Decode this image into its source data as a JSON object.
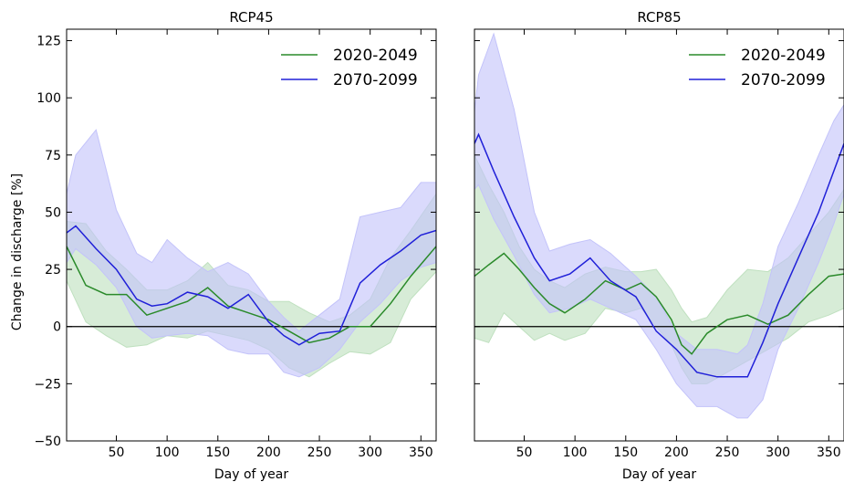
{
  "figure": {
    "ylabel": "Change in discharge [%]",
    "xlabel": "Day of year"
  },
  "chart_data": [
    {
      "type": "line",
      "title": "RCP45",
      "xlabel": "Day of year",
      "ylabel": "Change in discharge [%]",
      "xlim": [
        1,
        365
      ],
      "ylim": [
        -50,
        130
      ],
      "xticks": [
        50,
        100,
        150,
        200,
        250,
        300,
        350
      ],
      "yticks": [
        -50,
        -25,
        0,
        25,
        50,
        75,
        100,
        125
      ],
      "grid": false,
      "legend": "top-right",
      "reference_line": 0,
      "series": [
        {
          "name": "2020-2049",
          "color": "#2a8a2a",
          "fill": "#bfe0bf",
          "x": [
            1,
            20,
            40,
            60,
            80,
            100,
            120,
            140,
            160,
            180,
            200,
            220,
            240,
            260,
            280,
            300,
            320,
            340,
            365
          ],
          "y": [
            35,
            18,
            14,
            14,
            5,
            8,
            11,
            17,
            9,
            6,
            3,
            -2,
            -7,
            -5,
            0,
            0,
            10,
            22,
            35
          ],
          "upper": [
            46,
            45,
            33,
            25,
            16,
            16,
            20,
            28,
            18,
            16,
            11,
            11,
            6,
            2,
            5,
            12,
            30,
            42,
            58
          ],
          "lower": [
            20,
            2,
            -4,
            -9,
            -8,
            -4,
            -5,
            -2,
            -4,
            -6,
            -10,
            -18,
            -22,
            -16,
            -11,
            -12,
            -7,
            12,
            24
          ]
        },
        {
          "name": "2070-2099",
          "color": "#2020d8",
          "fill": "#c3c3fa",
          "x": [
            1,
            10,
            30,
            50,
            70,
            85,
            100,
            120,
            140,
            160,
            180,
            200,
            215,
            230,
            250,
            270,
            290,
            310,
            330,
            350,
            365
          ],
          "y": [
            41,
            44,
            34,
            25,
            12,
            9,
            10,
            15,
            13,
            8,
            14,
            2,
            -4,
            -8,
            -3,
            -2,
            19,
            27,
            33,
            40,
            42
          ],
          "upper": [
            58,
            75,
            86,
            51,
            32,
            28,
            38,
            30,
            24,
            28,
            23,
            11,
            4,
            -2,
            5,
            12,
            48,
            50,
            52,
            63,
            63
          ],
          "lower": [
            28,
            34,
            27,
            17,
            0,
            -5,
            -4,
            -3,
            -4,
            -10,
            -12,
            -12,
            -20,
            -22,
            -18,
            -10,
            2,
            10,
            20,
            26,
            28
          ]
        }
      ]
    },
    {
      "type": "line",
      "title": "RCP85",
      "xlabel": "Day of year",
      "ylabel": "",
      "xlim": [
        1,
        365
      ],
      "ylim": [
        -50,
        130
      ],
      "xticks": [
        50,
        100,
        150,
        200,
        250,
        300,
        350
      ],
      "yticks": [
        -50,
        -25,
        0,
        25,
        50,
        75,
        100,
        125
      ],
      "grid": false,
      "legend": "top-right",
      "reference_line": 0,
      "series": [
        {
          "name": "2020-2049",
          "color": "#2a8a2a",
          "fill": "#bfe0bf",
          "x": [
            1,
            15,
            30,
            45,
            60,
            75,
            90,
            110,
            130,
            150,
            165,
            180,
            195,
            205,
            215,
            230,
            250,
            270,
            290,
            310,
            330,
            350,
            365
          ],
          "y": [
            22,
            27,
            32,
            25,
            17,
            10,
            6,
            12,
            20,
            16,
            19,
            13,
            3,
            -8,
            -12,
            -3,
            3,
            5,
            1,
            5,
            14,
            22,
            23
          ],
          "upper": [
            75,
            62,
            50,
            35,
            25,
            20,
            17,
            23,
            26,
            24,
            24,
            25,
            16,
            8,
            2,
            4,
            16,
            25,
            24,
            30,
            40,
            50,
            60
          ],
          "lower": [
            -5,
            -7,
            6,
            0,
            -6,
            -3,
            -6,
            -3,
            8,
            6,
            8,
            0,
            -8,
            -18,
            -25,
            -25,
            -20,
            -15,
            -10,
            -5,
            2,
            5,
            8
          ]
        },
        {
          "name": "2070-2099",
          "color": "#2020d8",
          "fill": "#c3c3fa",
          "x": [
            1,
            5,
            20,
            40,
            60,
            75,
            95,
            115,
            135,
            160,
            180,
            200,
            220,
            240,
            260,
            270,
            285,
            300,
            320,
            340,
            355,
            365
          ],
          "y": [
            80,
            84,
            68,
            48,
            30,
            20,
            23,
            30,
            20,
            13,
            -2,
            -10,
            -20,
            -22,
            -22,
            -22,
            -7,
            10,
            30,
            50,
            68,
            80
          ],
          "upper": [
            94,
            110,
            128,
            95,
            50,
            33,
            36,
            38,
            32,
            22,
            13,
            -3,
            -10,
            -10,
            -12,
            -8,
            10,
            35,
            54,
            75,
            90,
            97
          ],
          "lower": [
            60,
            62,
            47,
            31,
            14,
            6,
            8,
            12,
            8,
            3,
            -10,
            -25,
            -35,
            -35,
            -40,
            -40,
            -32,
            -10,
            8,
            28,
            45,
            58
          ]
        }
      ]
    }
  ]
}
